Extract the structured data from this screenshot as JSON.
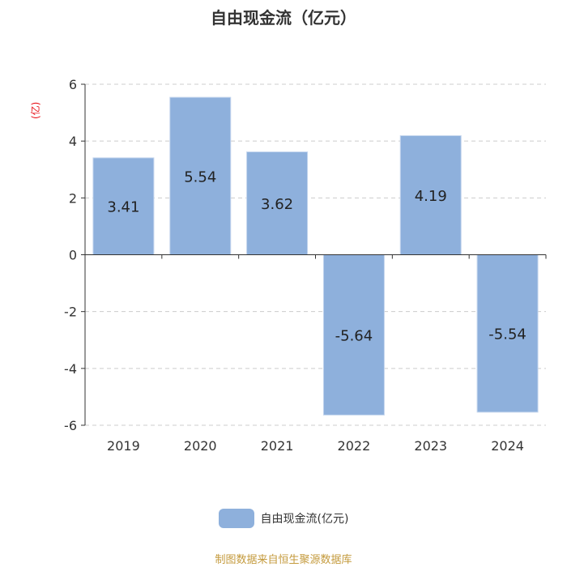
{
  "chart_data": {
    "type": "bar",
    "title": "自由现金流（亿元）",
    "ylabel": "(亿)",
    "categories": [
      "2019",
      "2020",
      "2021",
      "2022",
      "2023",
      "2024"
    ],
    "series": [
      {
        "name": "自由现金流(亿元)",
        "values": [
          3.41,
          5.54,
          3.62,
          -5.64,
          4.19,
          -5.54
        ],
        "color": "#8eb0dc"
      }
    ],
    "data_labels": [
      "3.41",
      "5.54",
      "3.62",
      "-5.64",
      "4.19",
      "-5.54"
    ],
    "ylim": [
      -6,
      6
    ],
    "yticks": [
      6,
      4,
      2,
      0,
      -2,
      -4,
      -6
    ],
    "grid": true,
    "legend": "bottom-center"
  },
  "footer": {
    "source": "制图数据来自恒生聚源数据库"
  },
  "colors": {
    "bar": "#8eb0dc",
    "title": "#333333",
    "unit": "#e8141b",
    "source": "#c49a3c"
  }
}
